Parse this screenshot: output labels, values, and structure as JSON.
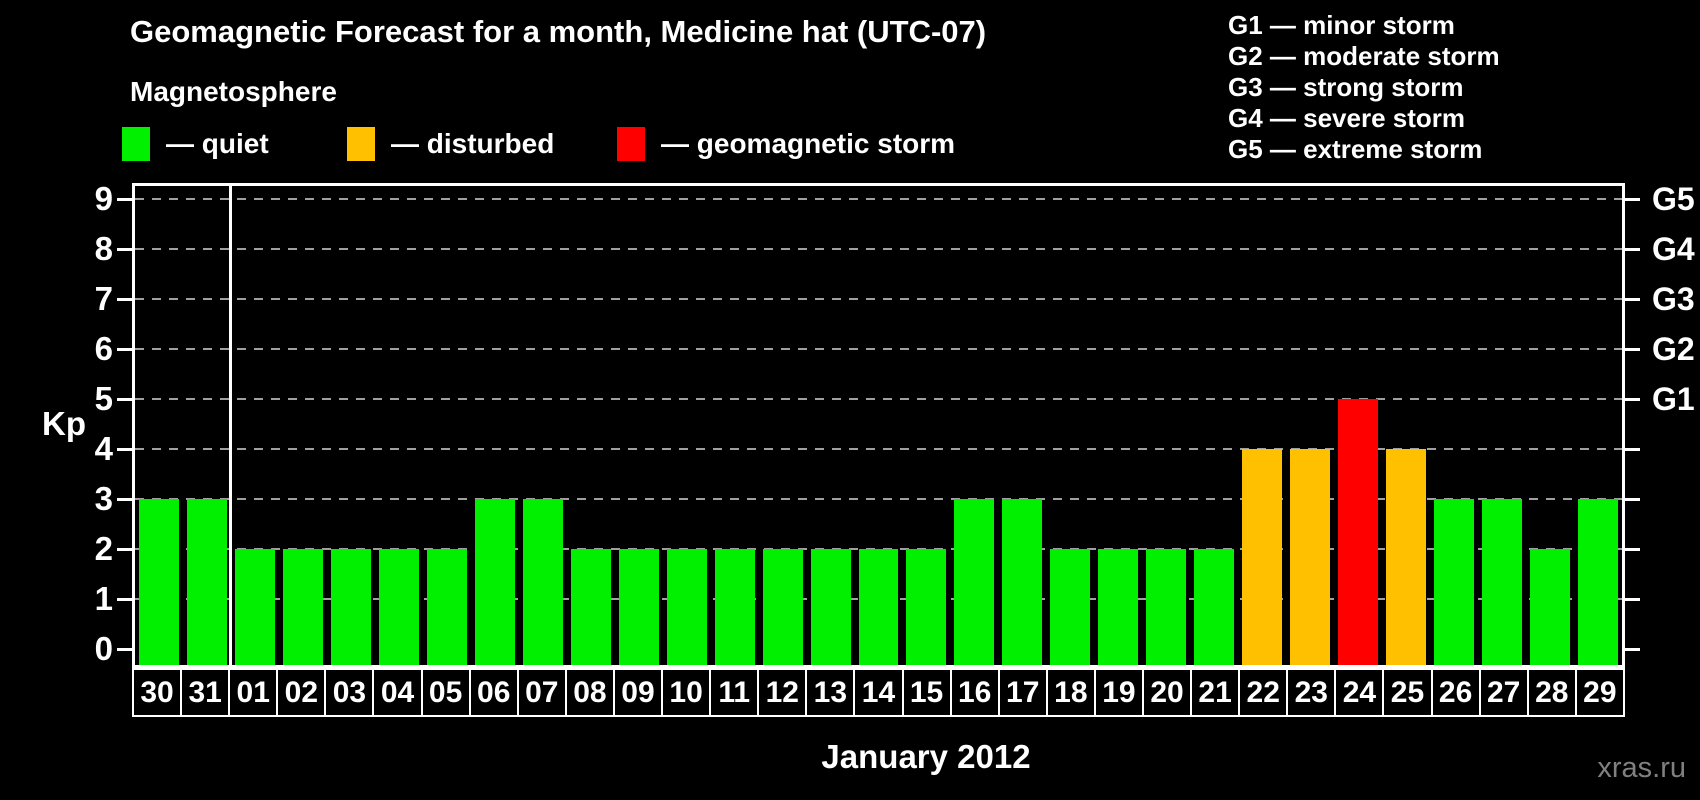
{
  "title": "Geomagnetic Forecast for a month, Medicine hat (UTC-07)",
  "magnetosphere_label": "Magnetosphere",
  "legend": {
    "items": [
      {
        "name": "quiet",
        "label": "— quiet",
        "color": "#00f000"
      },
      {
        "name": "disturbed",
        "label": "— disturbed",
        "color": "#ffc000"
      },
      {
        "name": "storm",
        "label": "— geomagnetic storm",
        "color": "#ff0000"
      }
    ]
  },
  "g_scale_legend": [
    "G1 — minor storm",
    "G2 — moderate storm",
    "G3 — strong storm",
    "G4 — severe storm",
    "G5 — extreme storm"
  ],
  "footer": {
    "x_axis_title": "January 2012",
    "watermark": "xras.ru"
  },
  "chart_data": {
    "type": "bar",
    "title": "Geomagnetic Forecast for a month, Medicine hat (UTC-07)",
    "xlabel": "January 2012",
    "ylabel": "Kp",
    "ylim": [
      0,
      9
    ],
    "y_ticks": [
      0,
      1,
      2,
      3,
      4,
      5,
      6,
      7,
      8,
      9
    ],
    "grid": "horizontal dashed lines at Kp 1-9",
    "legend_position": "top-left",
    "right_axis_ticks": [
      {
        "kp": 5,
        "label": "G1"
      },
      {
        "kp": 6,
        "label": "G2"
      },
      {
        "kp": 7,
        "label": "G3"
      },
      {
        "kp": 8,
        "label": "G4"
      },
      {
        "kp": 9,
        "label": "G5"
      }
    ],
    "categories": [
      "30",
      "31",
      "01",
      "02",
      "03",
      "04",
      "05",
      "06",
      "07",
      "08",
      "09",
      "10",
      "11",
      "12",
      "13",
      "14",
      "15",
      "16",
      "17",
      "18",
      "19",
      "20",
      "21",
      "22",
      "23",
      "24",
      "25",
      "26",
      "27",
      "28",
      "29"
    ],
    "values": [
      3,
      3,
      2,
      2,
      2,
      2,
      2,
      3,
      3,
      2,
      2,
      2,
      2,
      2,
      2,
      2,
      2,
      3,
      3,
      2,
      2,
      2,
      2,
      4,
      4,
      5,
      4,
      3,
      3,
      2,
      3
    ],
    "statuses": [
      "quiet",
      "quiet",
      "quiet",
      "quiet",
      "quiet",
      "quiet",
      "quiet",
      "quiet",
      "quiet",
      "quiet",
      "quiet",
      "quiet",
      "quiet",
      "quiet",
      "quiet",
      "quiet",
      "quiet",
      "quiet",
      "quiet",
      "quiet",
      "quiet",
      "quiet",
      "quiet",
      "disturbed",
      "disturbed",
      "storm",
      "disturbed",
      "quiet",
      "quiet",
      "quiet",
      "quiet"
    ],
    "status_colors": {
      "quiet": "#00f000",
      "disturbed": "#ffc000",
      "storm": "#ff0000"
    },
    "month_separator_after_index": 1
  }
}
